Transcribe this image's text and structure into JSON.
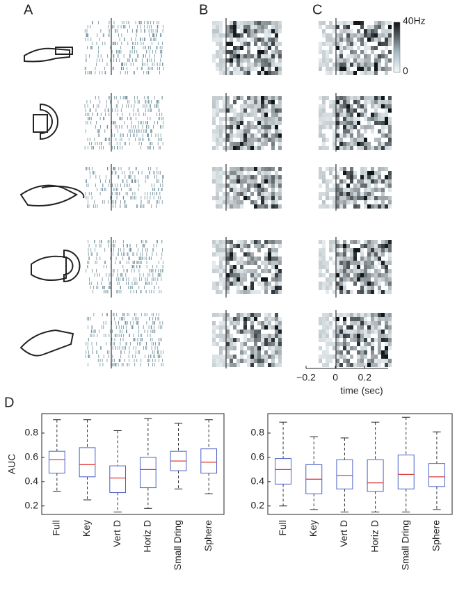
{
  "panel_labels": [
    "A",
    "B",
    "C",
    "D"
  ],
  "chart_data": [
    {
      "type": "raster",
      "xlabel": "time (sec)",
      "xlim": [
        -0.2,
        0.36
      ],
      "xticks": [
        {
          "value": -0.2,
          "label": "−0.2"
        },
        0,
        0.2
      ],
      "colorbar_labels": [
        "40Hz",
        "0"
      ]
    },
    {
      "type": "box",
      "ylabel": "AUC",
      "categories": [
        "Full",
        "Key",
        "Vert D",
        "Horiz D",
        "Small Dring",
        "Sphere"
      ],
      "boxes": [
        {
          "min": 0.32,
          "q1": 0.47,
          "median": 0.58,
          "q3": 0.65,
          "max": 0.91
        },
        {
          "min": 0.25,
          "q1": 0.44,
          "median": 0.54,
          "q3": 0.68,
          "max": 0.91
        },
        {
          "min": 0.15,
          "q1": 0.31,
          "median": 0.43,
          "q3": 0.53,
          "max": 0.82
        },
        {
          "min": 0.18,
          "q1": 0.35,
          "median": 0.5,
          "q3": 0.6,
          "max": 0.92
        },
        {
          "min": 0.34,
          "q1": 0.49,
          "median": 0.57,
          "q3": 0.65,
          "max": 0.88
        },
        {
          "min": 0.3,
          "q1": 0.47,
          "median": 0.56,
          "q3": 0.67,
          "max": 0.91
        }
      ],
      "box_color": "#4a5fc8",
      "median_color": "#e03a3a",
      "ylim": [
        0.13,
        0.96
      ],
      "yticks": [
        0.2,
        0.4,
        0.6,
        0.8
      ]
    },
    {
      "type": "box",
      "categories": [
        "Full",
        "Key",
        "Vert D",
        "Horiz D",
        "Small Dring",
        "Sphere"
      ],
      "boxes": [
        {
          "min": 0.2,
          "q1": 0.38,
          "median": 0.5,
          "q3": 0.59,
          "max": 0.89
        },
        {
          "min": 0.17,
          "q1": 0.3,
          "median": 0.42,
          "q3": 0.54,
          "max": 0.77
        },
        {
          "min": 0.15,
          "q1": 0.34,
          "median": 0.45,
          "q3": 0.58,
          "max": 0.76
        },
        {
          "min": 0.15,
          "q1": 0.32,
          "median": 0.39,
          "q3": 0.58,
          "max": 0.89
        },
        {
          "min": 0.15,
          "q1": 0.34,
          "median": 0.46,
          "q3": 0.62,
          "max": 0.93
        },
        {
          "min": 0.17,
          "q1": 0.36,
          "median": 0.44,
          "q3": 0.55,
          "max": 0.81
        }
      ],
      "box_color": "#4a5fc8",
      "median_color": "#e03a3a",
      "ylim": [
        0.13,
        0.96
      ],
      "yticks": [
        0.2,
        0.4,
        0.6,
        0.8
      ]
    }
  ]
}
